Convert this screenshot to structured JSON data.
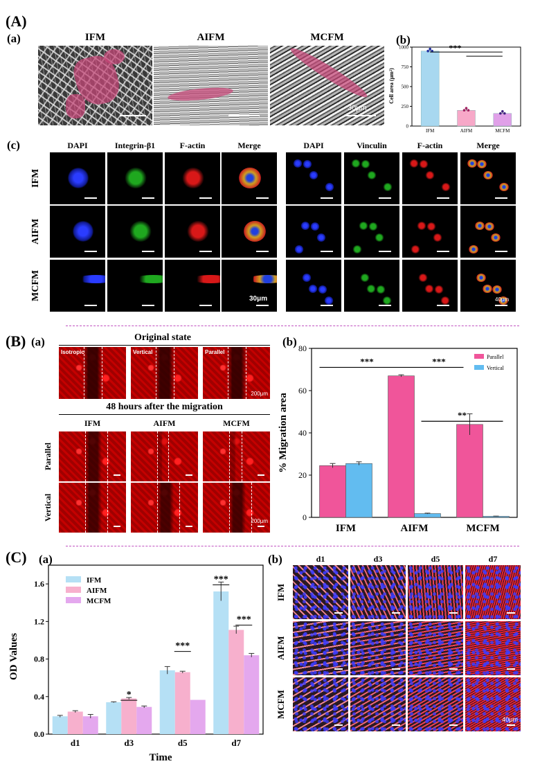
{
  "panel_A": {
    "label": "(A)",
    "a": {
      "label": "(a)",
      "columns": [
        "IFM",
        "AIFM",
        "MCFM"
      ],
      "scale_bar": "30μm"
    },
    "b": {
      "label": "(b)",
      "chart_data": {
        "type": "bar",
        "categories": [
          "IFM",
          "AIFM",
          "MCFM"
        ],
        "values": [
          950,
          200,
          160
        ],
        "errors": [
          20,
          15,
          10
        ],
        "ylabel": "Cell area (μm²)",
        "ylim": [
          0,
          1000
        ],
        "yticks": [
          0,
          250,
          500,
          750,
          1000
        ],
        "colors": [
          "#a8d8f0",
          "#f7a8c8",
          "#e0a0e8"
        ],
        "significance": "***"
      }
    },
    "c": {
      "label": "(c)",
      "left_headers": [
        "DAPI",
        "Integrin-β1",
        "F-actin",
        "Merge"
      ],
      "right_headers": [
        "DAPI",
        "Vinculin",
        "F-actin",
        "Merge"
      ],
      "rows": [
        "IFM",
        "AIFM",
        "MCFM"
      ],
      "left_scale": "30μm",
      "right_scale": "40μm"
    }
  },
  "panel_B": {
    "label": "(B)",
    "a": {
      "label": "(a)",
      "original_title": "Original state",
      "original_tiles": [
        "Isotropic",
        "Vertical",
        "Parallel"
      ],
      "original_scale": "200μm",
      "after_title": "48 hours after the migration",
      "columns": [
        "IFM",
        "AIFM",
        "MCFM"
      ],
      "rows": [
        "Parallel",
        "Vertical"
      ],
      "after_scale": "200μm"
    },
    "b": {
      "label": "(b)",
      "chart_data": {
        "type": "bar",
        "categories": [
          "IFM",
          "AIFM",
          "MCFM"
        ],
        "series": [
          {
            "name": "Parallel",
            "values": [
              24.5,
              67,
              44
            ],
            "errors": [
              1,
              0.5,
              5
            ],
            "color": "#f0559a"
          },
          {
            "name": "Vertical",
            "values": [
              25.5,
              1.8,
              0.5
            ],
            "errors": [
              0.8,
              0.2,
              0.1
            ],
            "color": "#62bcf0"
          }
        ],
        "ylabel": "% Migration area",
        "ylim": [
          0,
          80
        ],
        "yticks": [
          0,
          20,
          40,
          60,
          80
        ],
        "significance": [
          "***",
          "***",
          "**"
        ]
      }
    }
  },
  "panel_C": {
    "label": "(C)",
    "a": {
      "label": "(a)",
      "chart_data": {
        "type": "bar",
        "categories": [
          "d1",
          "d3",
          "d5",
          "d7"
        ],
        "series": [
          {
            "name": "IFM",
            "values": [
              0.19,
              0.34,
              0.68,
              1.52
            ],
            "errors": [
              0.01,
              0.005,
              0.04,
              0.1
            ],
            "color": "#b5e0f5"
          },
          {
            "name": "AIFM",
            "values": [
              0.24,
              0.38,
              0.66,
              1.11
            ],
            "errors": [
              0.01,
              0.01,
              0.01,
              0.04
            ],
            "color": "#f7b0cd"
          },
          {
            "name": "MCFM",
            "values": [
              0.19,
              0.29,
              0.365,
              0.84
            ],
            "errors": [
              0.02,
              0.01,
              0.0,
              0.02
            ],
            "color": "#e4a8ee"
          }
        ],
        "xlabel": "Time",
        "ylabel": "OD Values",
        "ylim": [
          0,
          1.8
        ],
        "yticks": [
          "0.0",
          "0.4",
          "0.8",
          "1.2",
          "1.6"
        ],
        "significance": [
          "*",
          "***",
          "***",
          "***"
        ]
      }
    },
    "b": {
      "label": "(b)",
      "columns": [
        "d1",
        "d3",
        "d5",
        "d7"
      ],
      "rows": [
        "IFM",
        "AIFM",
        "MCFM"
      ],
      "scale_bar": "40μm"
    }
  }
}
